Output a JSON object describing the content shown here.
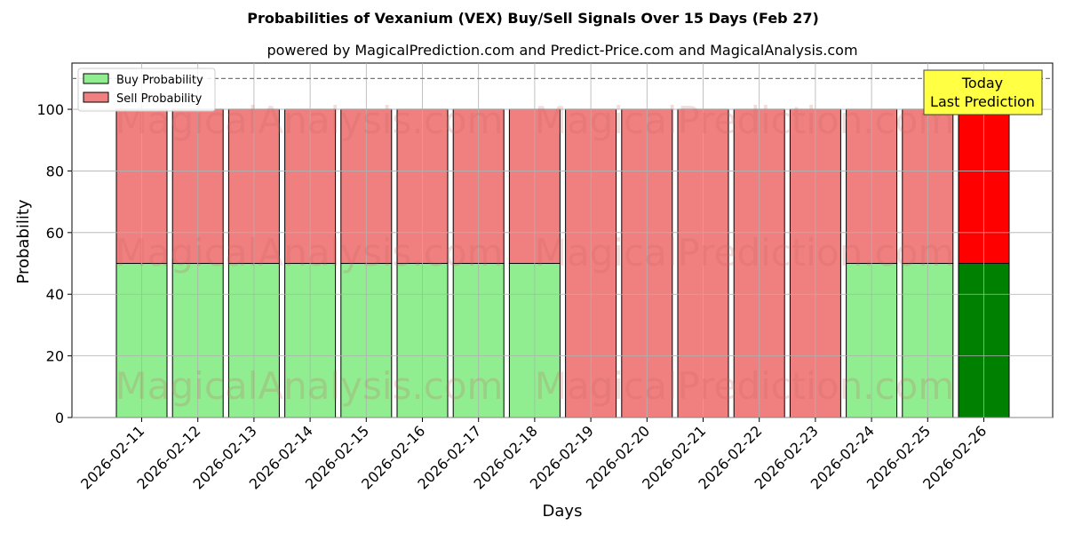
{
  "chart_data": {
    "type": "bar",
    "stacked": true,
    "title": "Probabilities of Vexanium (VEX) Buy/Sell Signals Over 15 Days (Feb 27)",
    "subtitle": "powered by MagicalPrediction.com and Predict-Price.com and MagicalAnalysis.com",
    "xlabel": "Days",
    "ylabel": "Probability",
    "ylim": [
      0,
      115
    ],
    "yticks": [
      0,
      20,
      40,
      60,
      80,
      100
    ],
    "reference_line": 110,
    "grid": true,
    "legend_position": "top-left",
    "categories": [
      "2026-02-11",
      "2026-02-12",
      "2026-02-13",
      "2026-02-14",
      "2026-02-15",
      "2026-02-16",
      "2026-02-17",
      "2026-02-18",
      "2026-02-19",
      "2026-02-20",
      "2026-02-21",
      "2026-02-22",
      "2026-02-23",
      "2026-02-24",
      "2026-02-25",
      "2026-02-26"
    ],
    "series": [
      {
        "name": "Buy Probability",
        "color": "#90ee90",
        "highlight_color": "#008000",
        "values": [
          50,
          50,
          50,
          50,
          50,
          50,
          50,
          50,
          0,
          0,
          0,
          0,
          0,
          50,
          50,
          50
        ]
      },
      {
        "name": "Sell Probability",
        "color": "#f08080",
        "highlight_color": "#ff0000",
        "values": [
          50,
          50,
          50,
          50,
          50,
          50,
          50,
          50,
          100,
          100,
          100,
          100,
          100,
          50,
          50,
          50
        ]
      }
    ],
    "highlight_index": 15,
    "annotation": {
      "line1": "Today",
      "line2": "Last Prediction",
      "color": "#ffff44"
    },
    "watermarks": [
      "MagicalAnalysis.com",
      "MagicalPrediction.com"
    ]
  }
}
